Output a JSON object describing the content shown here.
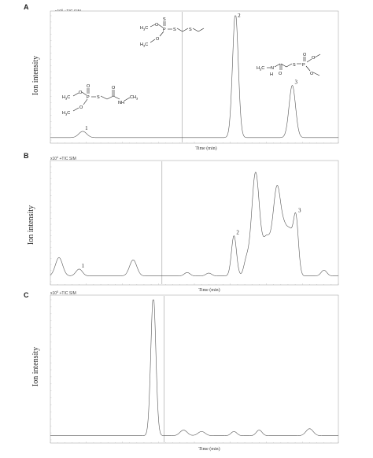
{
  "chart_data": [
    {
      "type": "line",
      "panel": "A",
      "unit_label": "x10",
      "unit_exp": "6",
      "trace_label": "+TIC SIM",
      "ylabel": "Ion intensity",
      "xlabel": "Time (min)",
      "x_range": [
        0,
        40
      ],
      "baseline": 0.02,
      "cursor_x": 18.3,
      "peaks": [
        {
          "x": 4.5,
          "height": 0.05,
          "width": 0.55,
          "label": "1"
        },
        {
          "x": 25.7,
          "height": 1.0,
          "width": 0.4,
          "label": "2"
        },
        {
          "x": 33.6,
          "height": 0.42,
          "width": 0.45,
          "label": "3"
        }
      ],
      "labels": [
        {
          "text": "1",
          "peak": 0
        },
        {
          "text": "2",
          "peak": 1
        },
        {
          "text": "3",
          "peak": 2
        }
      ]
    },
    {
      "type": "line",
      "panel": "B",
      "unit_label": "x10",
      "unit_exp": "4",
      "trace_label": "+TIC SIM",
      "ylabel": "Ion intensity",
      "xlabel": "Time (min)",
      "x_range": [
        0,
        40
      ],
      "baseline": 0.05,
      "cursor_x": 15.5,
      "peaks": [
        {
          "x": 1.2,
          "height": 0.16,
          "width": 0.5,
          "label": ""
        },
        {
          "x": 4.0,
          "height": 0.06,
          "width": 0.45,
          "label": "1"
        },
        {
          "x": 11.5,
          "height": 0.14,
          "width": 0.5,
          "label": ""
        },
        {
          "x": 19.0,
          "height": 0.03,
          "width": 0.4,
          "label": ""
        },
        {
          "x": 22.0,
          "height": 0.025,
          "width": 0.4,
          "label": ""
        },
        {
          "x": 25.5,
          "height": 0.35,
          "width": 0.35,
          "label": "2"
        },
        {
          "x": 27.2,
          "height": 0.12,
          "width": 0.35,
          "label": ""
        },
        {
          "x": 28.5,
          "height": 0.9,
          "width": 0.55,
          "label": ""
        },
        {
          "x": 30.0,
          "height": 0.3,
          "width": 0.5,
          "label": ""
        },
        {
          "x": 31.5,
          "height": 0.78,
          "width": 0.6,
          "label": ""
        },
        {
          "x": 32.6,
          "height": 0.25,
          "width": 0.4,
          "label": ""
        },
        {
          "x": 33.3,
          "height": 0.32,
          "width": 0.4,
          "label": ""
        },
        {
          "x": 34.1,
          "height": 0.5,
          "width": 0.35,
          "label": "3"
        },
        {
          "x": 38.0,
          "height": 0.05,
          "width": 0.4,
          "label": ""
        }
      ],
      "labels": [
        {
          "text": "1",
          "peak": 1
        },
        {
          "text": "2",
          "peak": 5
        },
        {
          "text": "3",
          "peak": 12
        }
      ]
    },
    {
      "type": "line",
      "panel": "C",
      "unit_label": "x10",
      "unit_exp": "5",
      "trace_label": "+TIC SIM",
      "ylabel": "Ion intensity",
      "xlabel": "Time (min)",
      "x_range": [
        0,
        40
      ],
      "baseline": 0.03,
      "cursor_x": 15.8,
      "peaks": [
        {
          "x": 14.3,
          "height": 1.0,
          "width": 0.35,
          "label": ""
        },
        {
          "x": 18.5,
          "height": 0.04,
          "width": 0.5,
          "label": ""
        },
        {
          "x": 21.0,
          "height": 0.03,
          "width": 0.5,
          "label": ""
        },
        {
          "x": 25.5,
          "height": 0.03,
          "width": 0.4,
          "label": ""
        },
        {
          "x": 29.0,
          "height": 0.04,
          "width": 0.4,
          "label": ""
        },
        {
          "x": 36.0,
          "height": 0.05,
          "width": 0.5,
          "label": ""
        }
      ],
      "labels": []
    }
  ],
  "molecules": {
    "m1": {
      "h3c_top": "H",
      "h3c_top_sub": "3",
      "h3c_top_c": "C",
      "p": "P",
      "s": "S",
      "o_dbl": "O",
      "o_ester": "O",
      "h3c_bot": "H",
      "h3c_bot_sub": "3",
      "h3c_bot_c": "C",
      "o_amide": "O",
      "n": "NH",
      "ch3": "CH",
      "ch3_sub": "3"
    },
    "m2": {
      "h3c_top": "H",
      "h3c_top_sub": "3",
      "h3c_top_c": "C",
      "p": "P",
      "s_dbl": "S",
      "s1": "S",
      "s2": "S",
      "o1": "O",
      "o2": "O",
      "h3c_bot": "H",
      "h3c_bot_sub": "3",
      "h3c_bot_c": "C"
    },
    "m3": {
      "h3c": "H",
      "h3c_sub": "3",
      "h3c_c": "C",
      "n": "N",
      "h": "H",
      "o_amide": "O",
      "s": "S",
      "p": "P",
      "o_dbl": "O",
      "o1": "O",
      "o2": "O"
    }
  }
}
